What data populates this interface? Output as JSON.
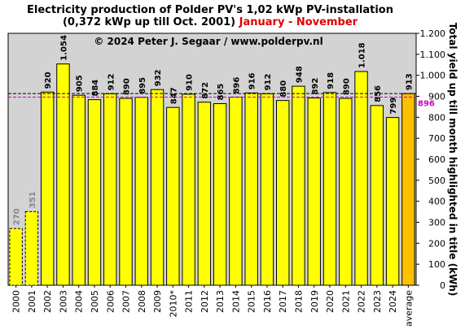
{
  "title_line1": "Electricity production  of Polder  PV's  1,02 kWp PV-installation",
  "title_line2_prefix": "(0,372 kWp up till Oct. 2001) ",
  "title_line2_highlight": "January - November",
  "copyright": "© 2024 Peter J. Segaar / www.polderpv.nl",
  "colors": {
    "plot_bg": "#d3d3d3",
    "bar_yellow": "#ffff00",
    "bar_average": "#ffc000",
    "highlight_red": "#e00000",
    "ref_line_purple": "#cc00cc",
    "label_grey": "#888888"
  },
  "chart_data": {
    "type": "bar",
    "categories": [
      "2000",
      "2001",
      "2002",
      "2003",
      "2004",
      "2005",
      "2006",
      "2007",
      "2008",
      "2009",
      "2010*",
      "2011",
      "2012",
      "2013",
      "2014",
      "2015",
      "2016",
      "2017",
      "2018",
      "2019",
      "2020",
      "2021",
      "2022",
      "2023",
      "2024",
      "average"
    ],
    "values": [
      270,
      351,
      920,
      1054,
      905,
      884,
      912,
      890,
      895,
      932,
      847,
      910,
      872,
      865,
      896,
      916,
      912,
      880,
      948,
      892,
      918,
      890,
      1018,
      856,
      799,
      913
    ],
    "value_labels": [
      "270",
      "351",
      "920",
      "1.054",
      "905",
      "884",
      "912",
      "890",
      "895",
      "932",
      "847",
      "910",
      "872",
      "865",
      "896",
      "916",
      "912",
      "880",
      "948",
      "892",
      "918",
      "890",
      "1.018",
      "856",
      "799",
      "913"
    ],
    "partial_years": [
      "2000",
      "2001"
    ],
    "ylabel": "Total yield up till month highlighted in title (kWh)",
    "ylim": [
      0,
      1200
    ],
    "y_ticks": [
      0,
      100,
      200,
      300,
      400,
      500,
      600,
      700,
      800,
      900,
      1000,
      1100,
      1200
    ],
    "y_tick_labels": [
      "0",
      "100",
      "200",
      "300",
      "400",
      "500",
      "600",
      "700",
      "800",
      "900",
      "1.000",
      "1.100",
      "1.200"
    ],
    "average_line_value": 913,
    "reference_line_value": 896,
    "reference_line_label": "896",
    "grid": false
  }
}
